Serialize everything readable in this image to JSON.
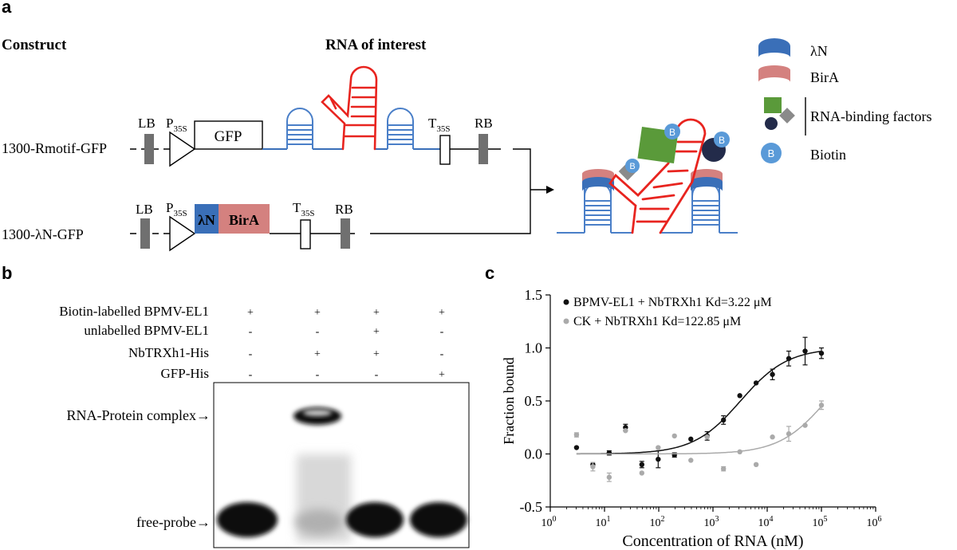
{
  "panel_a": {
    "letter": "a",
    "construct_heading": "Construct",
    "rna_title": "RNA of interest",
    "row1": {
      "name": "1300-Rmotif-GFP",
      "lb": "LB",
      "p_main": "P",
      "p_sub": "35S",
      "gfp": "GFP",
      "t_main": "T",
      "t_sub": "35S",
      "rb": "RB"
    },
    "row2": {
      "name": "1300-λN-GFP",
      "lb": "LB",
      "p_main": "P",
      "p_sub": "35S",
      "ln": "λN",
      "bira": "BirA",
      "t_main": "T",
      "t_sub": "35S",
      "rb": "RB"
    },
    "legend": {
      "ln": "λN",
      "bira": "BirA",
      "rbf": "RNA-binding factors",
      "biotin": "Biotin",
      "b": "B"
    },
    "colors": {
      "blue": "#3a6fb8",
      "red": "#e8241f",
      "pink": "#d4817f",
      "green": "#5a9a3a",
      "gray": "#8a8a8a",
      "navy": "#232b4a",
      "biotin": "#5a9ad8",
      "stem": "#5a86c4"
    }
  },
  "panel_b": {
    "letter": "b",
    "conditions": [
      {
        "label": "Biotin-labelled BPMV-EL1",
        "marks": [
          "+",
          "+",
          "+",
          "+"
        ]
      },
      {
        "label": "unlabelled BPMV-EL1",
        "marks": [
          "-",
          "-",
          "+",
          "-"
        ]
      },
      {
        "label": "NbTRXh1-His",
        "marks": [
          "-",
          "+",
          "+",
          "-"
        ]
      },
      {
        "label": "GFP-His",
        "marks": [
          "-",
          "-",
          "-",
          "+"
        ]
      }
    ],
    "complex_label": "RNA-Protein complex→",
    "free_label": "free-probe→"
  },
  "panel_c": {
    "letter": "c",
    "chart_data": {
      "type": "scatter",
      "xlabel": "Concentration of RNA (nM)",
      "ylabel": "Fraction bound",
      "xscale": "log",
      "xlim": [
        1,
        1000000
      ],
      "ylim": [
        -0.5,
        1.5
      ],
      "xticks": [
        {
          "v": 1,
          "b": "10",
          "e": "0"
        },
        {
          "v": 10,
          "b": "10",
          "e": "1"
        },
        {
          "v": 100,
          "b": "10",
          "e": "2"
        },
        {
          "v": 1000,
          "b": "10",
          "e": "3"
        },
        {
          "v": 10000,
          "b": "10",
          "e": "4"
        },
        {
          "v": 100000,
          "b": "10",
          "e": "5"
        },
        {
          "v": 1000000,
          "b": "10",
          "e": "6"
        }
      ],
      "yticks": [
        "-0.5",
        "0.0",
        "0.5",
        "1.0",
        "1.5"
      ],
      "legend_position": "top-left",
      "series": [
        {
          "name": "BPMV-EL1 + NbTRXh1 Kd=3.22 μM",
          "color": "#111111",
          "kd_nM": 3220,
          "x": [
            3.05,
            6.1,
            12.2,
            24.4,
            48.8,
            97.7,
            195,
            391,
            781,
            1563,
            3125,
            6250,
            12500,
            25000,
            50000,
            100000
          ],
          "y": [
            0.06,
            -0.1,
            0.01,
            0.25,
            -0.1,
            -0.05,
            -0.01,
            0.14,
            0.17,
            0.32,
            0.55,
            0.67,
            0.75,
            0.9,
            0.97,
            0.95
          ],
          "err": [
            0,
            0,
            0.02,
            0.03,
            0.03,
            0.08,
            0.02,
            0,
            0.04,
            0.04,
            0,
            0,
            0.05,
            0.07,
            0.13,
            0.05
          ]
        },
        {
          "name": "CK + NbTRXh1 Kd=122.85 μM",
          "color": "#aaaaaa",
          "kd_nM": 122850,
          "x": [
            3.05,
            6.1,
            12.2,
            24.4,
            48.8,
            97.7,
            195,
            391,
            781,
            1563,
            3125,
            6250,
            12500,
            25000,
            50000,
            100000
          ],
          "y": [
            0.18,
            -0.12,
            -0.22,
            0.22,
            -0.18,
            0.06,
            0.17,
            -0.06,
            0.16,
            -0.14,
            0.02,
            -0.1,
            0.16,
            0.19,
            0.27,
            0.46
          ],
          "err": [
            0.02,
            0.04,
            0.04,
            0,
            0,
            0,
            0,
            0,
            0,
            0.02,
            0,
            0,
            0,
            0.07,
            0,
            0.04
          ]
        }
      ]
    }
  }
}
